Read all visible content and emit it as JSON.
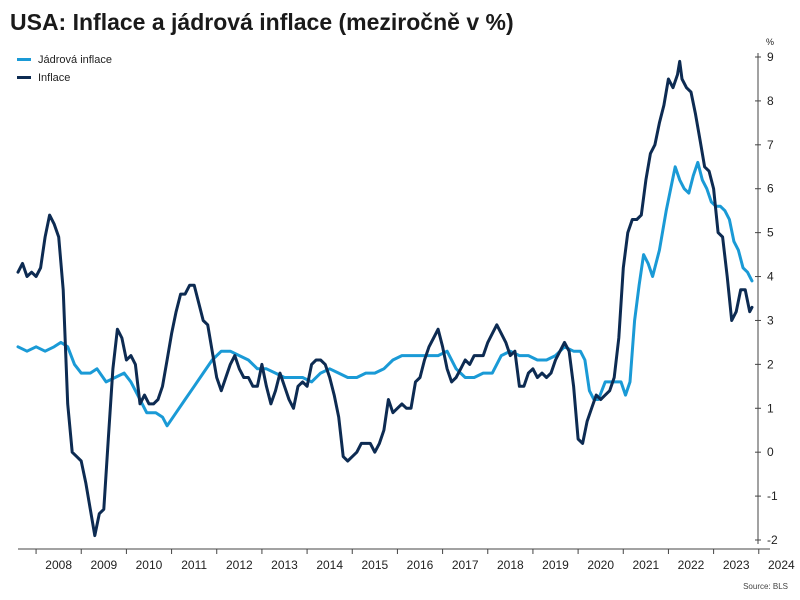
{
  "chart_data": {
    "type": "line",
    "title": "USA: Inflace a jádrová inflace (meziročně v %)",
    "y_unit": "%",
    "ylim": [
      -2,
      9
    ],
    "yticks": [
      -2,
      -1,
      0,
      1,
      2,
      3,
      4,
      5,
      6,
      7,
      8,
      9
    ],
    "xlim": [
      2007.6,
      2023.85
    ],
    "xticks": [
      2008,
      2009,
      2010,
      2011,
      2012,
      2013,
      2014,
      2015,
      2016,
      2017,
      2018,
      2019,
      2020,
      2021,
      2022,
      2023,
      2024
    ],
    "grid": false,
    "legend_position": "top-left",
    "source": "Source: BLS",
    "colors": {
      "core": "#1a9ad6",
      "headline": "#0d2b52"
    },
    "series": [
      {
        "name": "Jádrová inflace",
        "key": "core",
        "points": [
          [
            2007.6,
            2.4
          ],
          [
            2007.8,
            2.3
          ],
          [
            2008.0,
            2.4
          ],
          [
            2008.2,
            2.3
          ],
          [
            2008.4,
            2.4
          ],
          [
            2008.55,
            2.5
          ],
          [
            2008.7,
            2.4
          ],
          [
            2008.85,
            2.0
          ],
          [
            2009.0,
            1.8
          ],
          [
            2009.2,
            1.8
          ],
          [
            2009.35,
            1.9
          ],
          [
            2009.55,
            1.6
          ],
          [
            2009.75,
            1.7
          ],
          [
            2009.95,
            1.8
          ],
          [
            2010.1,
            1.6
          ],
          [
            2010.25,
            1.3
          ],
          [
            2010.45,
            0.9
          ],
          [
            2010.65,
            0.9
          ],
          [
            2010.8,
            0.8
          ],
          [
            2010.9,
            0.6
          ],
          [
            2011.1,
            0.9
          ],
          [
            2011.3,
            1.2
          ],
          [
            2011.5,
            1.5
          ],
          [
            2011.7,
            1.8
          ],
          [
            2011.9,
            2.1
          ],
          [
            2012.1,
            2.3
          ],
          [
            2012.3,
            2.3
          ],
          [
            2012.5,
            2.2
          ],
          [
            2012.7,
            2.1
          ],
          [
            2012.9,
            1.9
          ],
          [
            2013.1,
            1.9
          ],
          [
            2013.3,
            1.8
          ],
          [
            2013.5,
            1.7
          ],
          [
            2013.7,
            1.7
          ],
          [
            2013.9,
            1.7
          ],
          [
            2014.1,
            1.6
          ],
          [
            2014.3,
            1.8
          ],
          [
            2014.5,
            1.9
          ],
          [
            2014.7,
            1.8
          ],
          [
            2014.9,
            1.7
          ],
          [
            2015.1,
            1.7
          ],
          [
            2015.3,
            1.8
          ],
          [
            2015.5,
            1.8
          ],
          [
            2015.7,
            1.9
          ],
          [
            2015.9,
            2.1
          ],
          [
            2016.1,
            2.2
          ],
          [
            2016.3,
            2.2
          ],
          [
            2016.5,
            2.2
          ],
          [
            2016.7,
            2.2
          ],
          [
            2016.9,
            2.2
          ],
          [
            2017.1,
            2.3
          ],
          [
            2017.3,
            1.9
          ],
          [
            2017.5,
            1.7
          ],
          [
            2017.7,
            1.7
          ],
          [
            2017.9,
            1.8
          ],
          [
            2018.1,
            1.8
          ],
          [
            2018.3,
            2.2
          ],
          [
            2018.5,
            2.3
          ],
          [
            2018.7,
            2.2
          ],
          [
            2018.9,
            2.2
          ],
          [
            2019.1,
            2.1
          ],
          [
            2019.3,
            2.1
          ],
          [
            2019.5,
            2.2
          ],
          [
            2019.7,
            2.4
          ],
          [
            2019.9,
            2.3
          ],
          [
            2020.05,
            2.3
          ],
          [
            2020.15,
            2.1
          ],
          [
            2020.25,
            1.4
          ],
          [
            2020.35,
            1.2
          ],
          [
            2020.45,
            1.2
          ],
          [
            2020.6,
            1.6
          ],
          [
            2020.8,
            1.6
          ],
          [
            2020.95,
            1.6
          ],
          [
            2021.05,
            1.3
          ],
          [
            2021.15,
            1.6
          ],
          [
            2021.25,
            3.0
          ],
          [
            2021.35,
            3.8
          ],
          [
            2021.45,
            4.5
          ],
          [
            2021.55,
            4.3
          ],
          [
            2021.65,
            4.0
          ],
          [
            2021.8,
            4.6
          ],
          [
            2021.95,
            5.5
          ],
          [
            2022.05,
            6.0
          ],
          [
            2022.15,
            6.5
          ],
          [
            2022.25,
            6.2
          ],
          [
            2022.35,
            6.0
          ],
          [
            2022.45,
            5.9
          ],
          [
            2022.55,
            6.3
          ],
          [
            2022.65,
            6.6
          ],
          [
            2022.75,
            6.2
          ],
          [
            2022.85,
            6.0
          ],
          [
            2022.95,
            5.7
          ],
          [
            2023.05,
            5.6
          ],
          [
            2023.15,
            5.6
          ],
          [
            2023.25,
            5.5
          ],
          [
            2023.35,
            5.3
          ],
          [
            2023.45,
            4.8
          ],
          [
            2023.55,
            4.6
          ],
          [
            2023.65,
            4.2
          ],
          [
            2023.75,
            4.1
          ],
          [
            2023.85,
            3.9
          ]
        ]
      },
      {
        "name": "Inflace",
        "key": "headline",
        "points": [
          [
            2007.6,
            4.1
          ],
          [
            2007.7,
            4.3
          ],
          [
            2007.8,
            4.0
          ],
          [
            2007.9,
            4.1
          ],
          [
            2008.0,
            4.0
          ],
          [
            2008.1,
            4.2
          ],
          [
            2008.2,
            4.9
          ],
          [
            2008.3,
            5.4
          ],
          [
            2008.4,
            5.2
          ],
          [
            2008.5,
            4.9
          ],
          [
            2008.6,
            3.7
          ],
          [
            2008.7,
            1.1
          ],
          [
            2008.8,
            0.0
          ],
          [
            2008.9,
            -0.1
          ],
          [
            2009.0,
            -0.2
          ],
          [
            2009.1,
            -0.7
          ],
          [
            2009.2,
            -1.3
          ],
          [
            2009.3,
            -1.9
          ],
          [
            2009.4,
            -1.4
          ],
          [
            2009.5,
            -1.3
          ],
          [
            2009.6,
            0.3
          ],
          [
            2009.7,
            1.9
          ],
          [
            2009.8,
            2.8
          ],
          [
            2009.9,
            2.6
          ],
          [
            2010.0,
            2.1
          ],
          [
            2010.1,
            2.2
          ],
          [
            2010.2,
            2.0
          ],
          [
            2010.3,
            1.1
          ],
          [
            2010.4,
            1.3
          ],
          [
            2010.5,
            1.1
          ],
          [
            2010.6,
            1.1
          ],
          [
            2010.7,
            1.2
          ],
          [
            2010.8,
            1.5
          ],
          [
            2010.9,
            2.1
          ],
          [
            2011.0,
            2.7
          ],
          [
            2011.1,
            3.2
          ],
          [
            2011.2,
            3.6
          ],
          [
            2011.3,
            3.6
          ],
          [
            2011.4,
            3.8
          ],
          [
            2011.5,
            3.8
          ],
          [
            2011.6,
            3.4
          ],
          [
            2011.7,
            3.0
          ],
          [
            2011.8,
            2.9
          ],
          [
            2011.9,
            2.3
          ],
          [
            2012.0,
            1.7
          ],
          [
            2012.1,
            1.4
          ],
          [
            2012.2,
            1.7
          ],
          [
            2012.3,
            2.0
          ],
          [
            2012.4,
            2.2
          ],
          [
            2012.5,
            1.9
          ],
          [
            2012.6,
            1.7
          ],
          [
            2012.7,
            1.7
          ],
          [
            2012.8,
            1.5
          ],
          [
            2012.9,
            1.5
          ],
          [
            2013.0,
            2.0
          ],
          [
            2013.1,
            1.5
          ],
          [
            2013.2,
            1.1
          ],
          [
            2013.3,
            1.4
          ],
          [
            2013.4,
            1.8
          ],
          [
            2013.5,
            1.5
          ],
          [
            2013.6,
            1.2
          ],
          [
            2013.7,
            1.0
          ],
          [
            2013.8,
            1.5
          ],
          [
            2013.9,
            1.6
          ],
          [
            2014.0,
            1.5
          ],
          [
            2014.1,
            2.0
          ],
          [
            2014.2,
            2.1
          ],
          [
            2014.3,
            2.1
          ],
          [
            2014.4,
            2.0
          ],
          [
            2014.5,
            1.7
          ],
          [
            2014.6,
            1.3
          ],
          [
            2014.7,
            0.8
          ],
          [
            2014.8,
            -0.1
          ],
          [
            2014.9,
            -0.2
          ],
          [
            2015.0,
            -0.1
          ],
          [
            2015.1,
            0.0
          ],
          [
            2015.2,
            0.2
          ],
          [
            2015.3,
            0.2
          ],
          [
            2015.4,
            0.2
          ],
          [
            2015.5,
            0.0
          ],
          [
            2015.6,
            0.2
          ],
          [
            2015.7,
            0.5
          ],
          [
            2015.8,
            1.2
          ],
          [
            2015.9,
            0.9
          ],
          [
            2016.0,
            1.0
          ],
          [
            2016.1,
            1.1
          ],
          [
            2016.2,
            1.0
          ],
          [
            2016.3,
            1.0
          ],
          [
            2016.4,
            1.6
          ],
          [
            2016.5,
            1.7
          ],
          [
            2016.6,
            2.1
          ],
          [
            2016.7,
            2.4
          ],
          [
            2016.8,
            2.6
          ],
          [
            2016.9,
            2.8
          ],
          [
            2017.0,
            2.4
          ],
          [
            2017.1,
            1.9
          ],
          [
            2017.2,
            1.6
          ],
          [
            2017.3,
            1.7
          ],
          [
            2017.4,
            1.9
          ],
          [
            2017.5,
            2.1
          ],
          [
            2017.6,
            2.0
          ],
          [
            2017.7,
            2.2
          ],
          [
            2017.8,
            2.2
          ],
          [
            2017.9,
            2.2
          ],
          [
            2018.0,
            2.5
          ],
          [
            2018.1,
            2.7
          ],
          [
            2018.2,
            2.9
          ],
          [
            2018.3,
            2.7
          ],
          [
            2018.4,
            2.5
          ],
          [
            2018.5,
            2.2
          ],
          [
            2018.6,
            2.3
          ],
          [
            2018.7,
            1.5
          ],
          [
            2018.8,
            1.5
          ],
          [
            2018.9,
            1.8
          ],
          [
            2019.0,
            1.9
          ],
          [
            2019.1,
            1.7
          ],
          [
            2019.2,
            1.8
          ],
          [
            2019.3,
            1.7
          ],
          [
            2019.4,
            1.8
          ],
          [
            2019.5,
            2.1
          ],
          [
            2019.6,
            2.3
          ],
          [
            2019.7,
            2.5
          ],
          [
            2019.8,
            2.3
          ],
          [
            2019.9,
            1.5
          ],
          [
            2020.0,
            0.3
          ],
          [
            2020.1,
            0.2
          ],
          [
            2020.2,
            0.7
          ],
          [
            2020.3,
            1.0
          ],
          [
            2020.4,
            1.3
          ],
          [
            2020.5,
            1.2
          ],
          [
            2020.6,
            1.3
          ],
          [
            2020.7,
            1.4
          ],
          [
            2020.8,
            1.7
          ],
          [
            2020.9,
            2.6
          ],
          [
            2021.0,
            4.2
          ],
          [
            2021.1,
            5.0
          ],
          [
            2021.2,
            5.3
          ],
          [
            2021.3,
            5.3
          ],
          [
            2021.4,
            5.4
          ],
          [
            2021.5,
            6.2
          ],
          [
            2021.6,
            6.8
          ],
          [
            2021.7,
            7.0
          ],
          [
            2021.8,
            7.5
          ],
          [
            2021.9,
            7.9
          ],
          [
            2022.0,
            8.5
          ],
          [
            2022.1,
            8.3
          ],
          [
            2022.2,
            8.6
          ],
          [
            2022.25,
            8.9
          ],
          [
            2022.3,
            8.5
          ],
          [
            2022.4,
            8.3
          ],
          [
            2022.5,
            8.2
          ],
          [
            2022.6,
            7.7
          ],
          [
            2022.7,
            7.1
          ],
          [
            2022.8,
            6.5
          ],
          [
            2022.9,
            6.4
          ],
          [
            2023.0,
            6.0
          ],
          [
            2023.1,
            5.0
          ],
          [
            2023.2,
            4.9
          ],
          [
            2023.3,
            4.0
          ],
          [
            2023.4,
            3.0
          ],
          [
            2023.5,
            3.2
          ],
          [
            2023.6,
            3.7
          ],
          [
            2023.7,
            3.7
          ],
          [
            2023.8,
            3.2
          ],
          [
            2023.85,
            3.3
          ]
        ]
      }
    ]
  }
}
